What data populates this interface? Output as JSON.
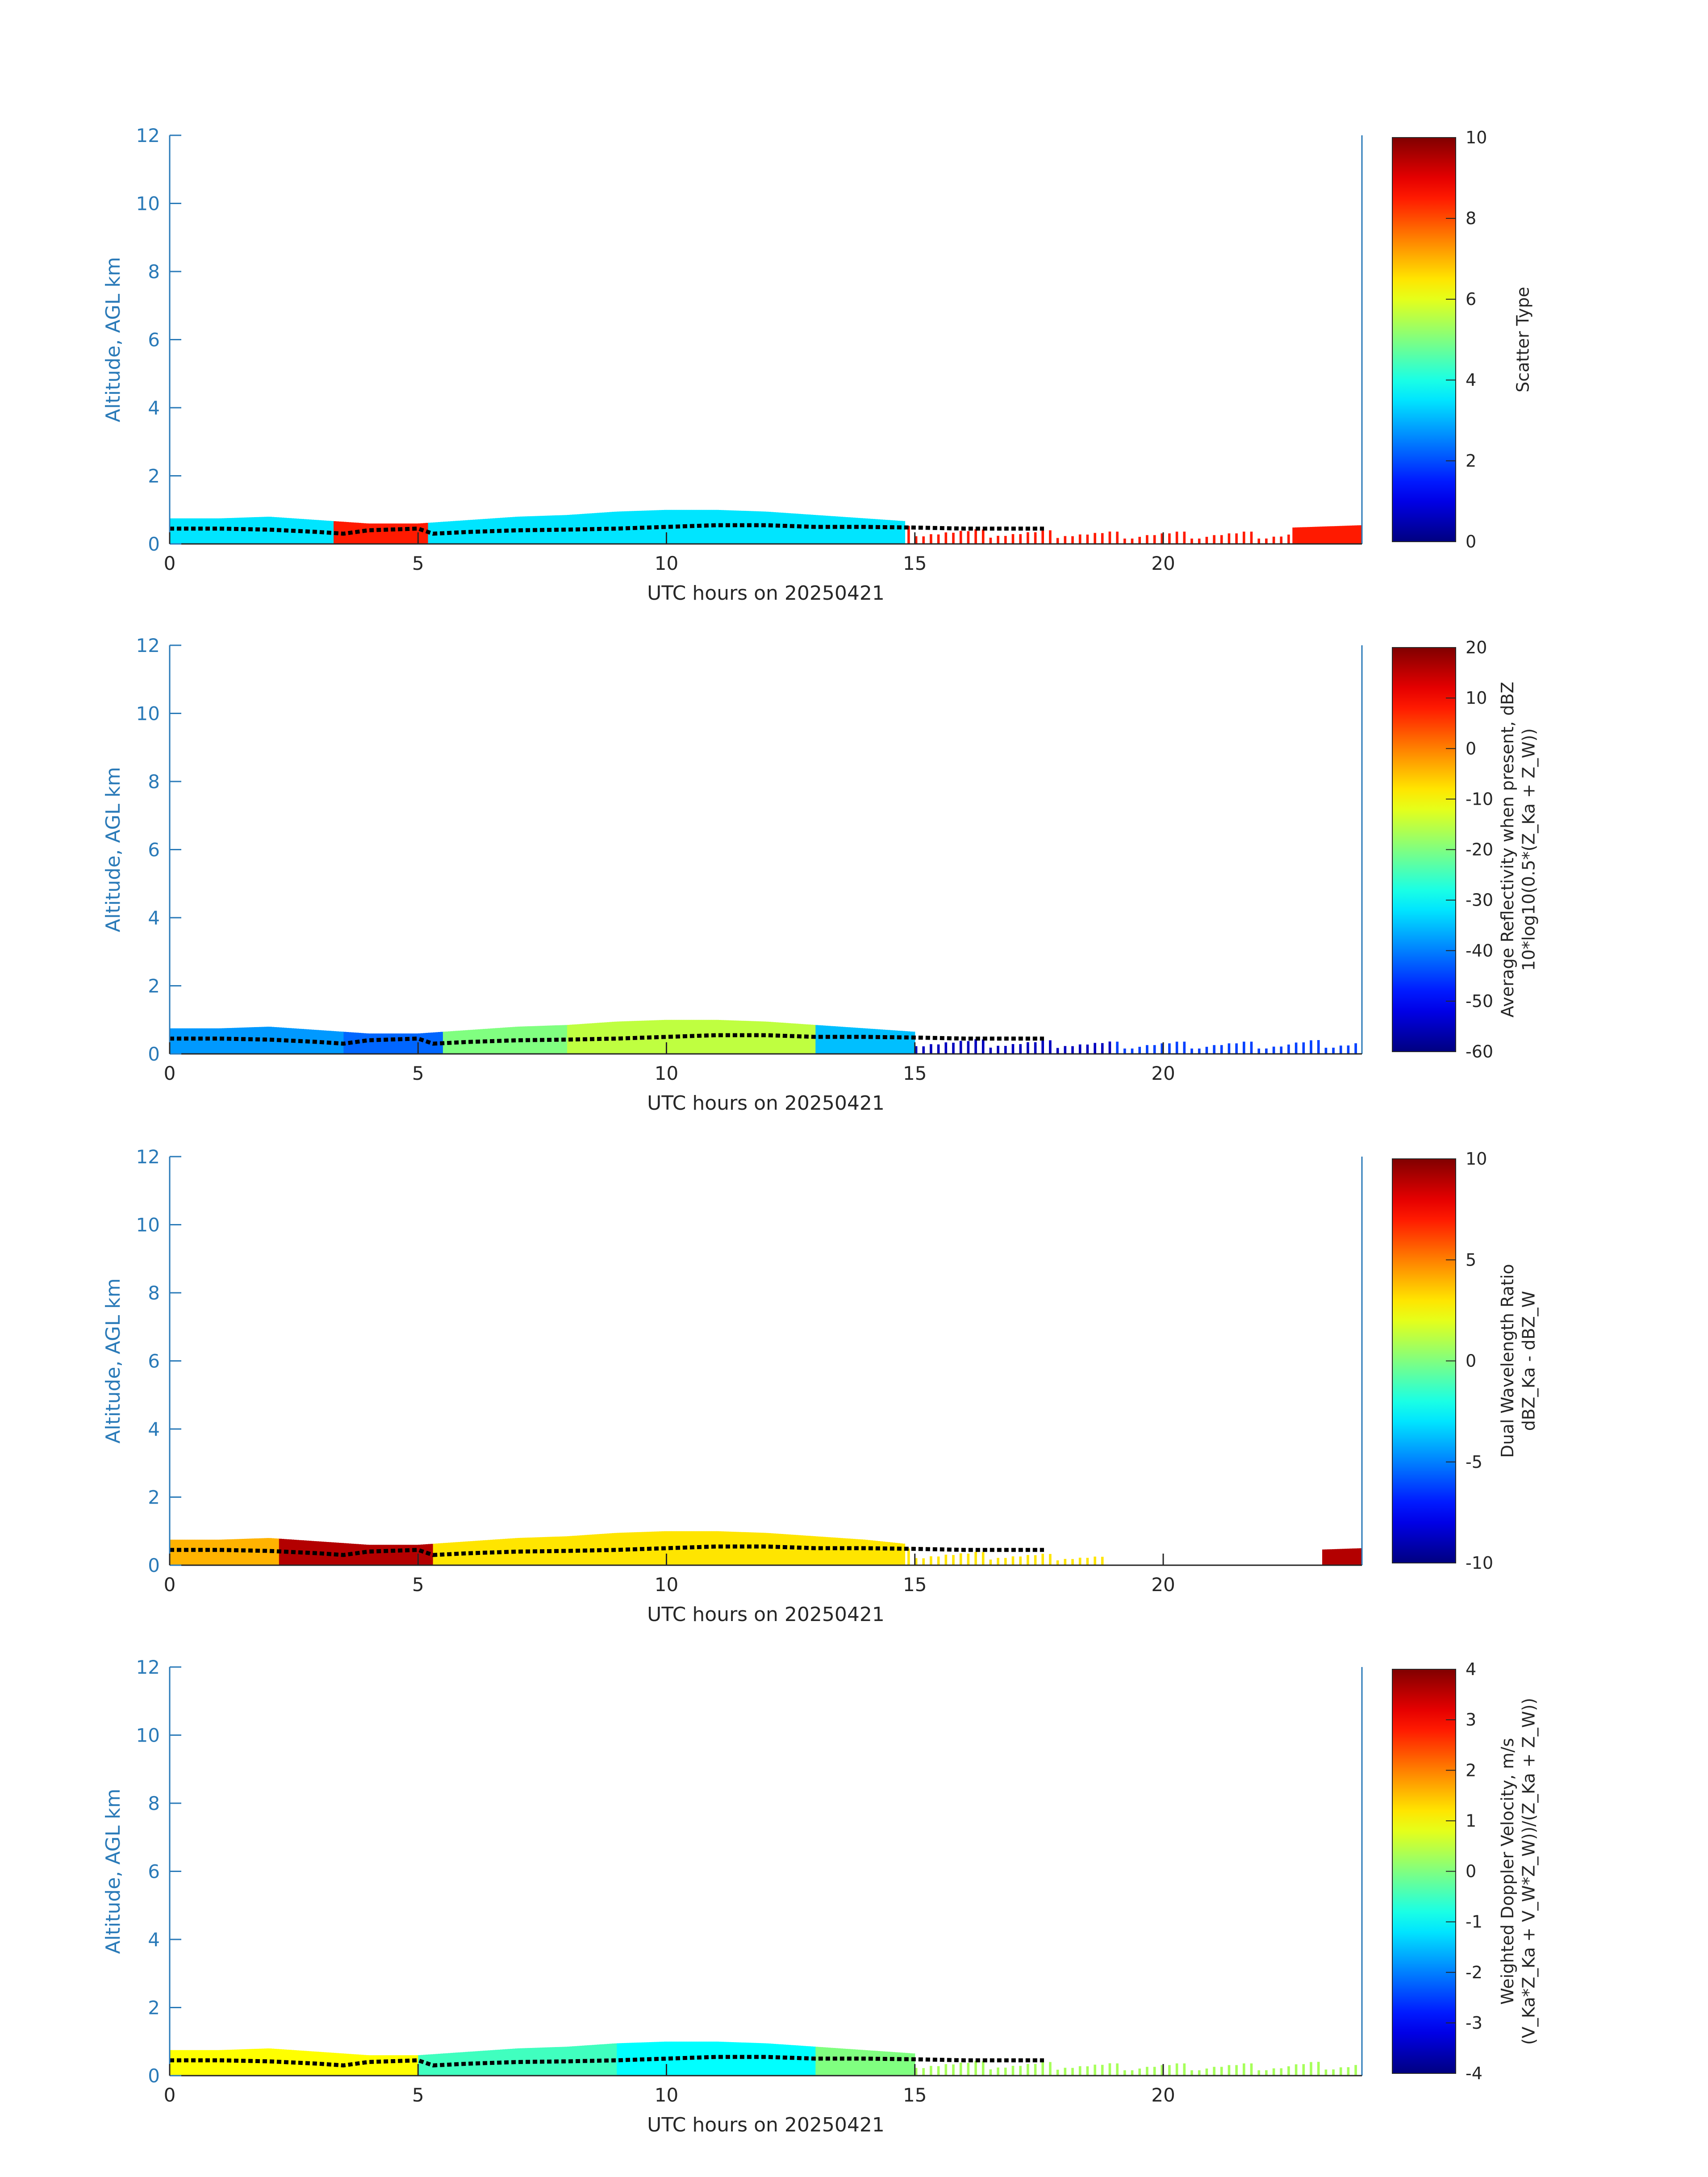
{
  "figure": {
    "background": "#ffffff",
    "axis_color": "#2a7ab8",
    "text_color": "#262626",
    "overlay_color": "#000000"
  },
  "chart_data": [
    {
      "type": "heatmap",
      "title": "",
      "xlabel": "UTC hours on 20250421",
      "ylabel": "Altitude, AGL km",
      "xlim": [
        0,
        24
      ],
      "ylim": [
        0,
        12
      ],
      "xticks": [
        "0",
        "5",
        "10",
        "15",
        "20"
      ],
      "yticks": [
        "0",
        "2",
        "4",
        "6",
        "8",
        "10",
        "12"
      ],
      "colorbar": {
        "label_lines": [
          "Scatter Type"
        ],
        "range": [
          0,
          10
        ],
        "ticks": [
          "0",
          "2",
          "4",
          "6",
          "8",
          "10"
        ],
        "colormap": "jet"
      },
      "layer_top_km": [
        [
          0,
          0.75
        ],
        [
          1,
          0.75
        ],
        [
          2,
          0.8
        ],
        [
          3,
          0.7
        ],
        [
          4,
          0.6
        ],
        [
          5,
          0.6
        ],
        [
          6,
          0.7
        ],
        [
          7,
          0.8
        ],
        [
          8,
          0.85
        ],
        [
          9,
          0.95
        ],
        [
          10,
          1.0
        ],
        [
          11,
          1.0
        ],
        [
          12,
          0.95
        ],
        [
          13,
          0.85
        ],
        [
          14,
          0.75
        ],
        [
          15,
          0.65
        ],
        [
          16,
          0.55
        ],
        [
          17,
          0.5
        ],
        [
          18,
          0.5
        ],
        [
          19,
          0.45
        ],
        [
          20,
          0.45
        ],
        [
          21,
          0.45
        ],
        [
          22,
          0.45
        ],
        [
          23,
          0.5
        ],
        [
          24,
          0.55
        ]
      ],
      "field_segments": [
        {
          "x": [
            0,
            3.3
          ],
          "value": 3.5
        },
        {
          "x": [
            3.3,
            5.2
          ],
          "value": 8.5
        },
        {
          "x": [
            5.2,
            14.8
          ],
          "value": 3.5
        },
        {
          "x": [
            14.8,
            17.8
          ],
          "value": 8.5,
          "sparse": true
        },
        {
          "x": [
            17.8,
            22.6
          ],
          "value": 8.5,
          "sparse": true
        },
        {
          "x": [
            22.6,
            24
          ],
          "value": 8.5
        }
      ],
      "overlay_line_km": [
        [
          0,
          0.45
        ],
        [
          1,
          0.45
        ],
        [
          2,
          0.42
        ],
        [
          3,
          0.35
        ],
        [
          3.5,
          0.3
        ],
        [
          4,
          0.4
        ],
        [
          5,
          0.45
        ],
        [
          5.3,
          0.3
        ],
        [
          6,
          0.35
        ],
        [
          7,
          0.4
        ],
        [
          8,
          0.42
        ],
        [
          9,
          0.45
        ],
        [
          10,
          0.5
        ],
        [
          11,
          0.55
        ],
        [
          12,
          0.55
        ],
        [
          13,
          0.5
        ],
        [
          14,
          0.5
        ],
        [
          15,
          0.48
        ],
        [
          16,
          0.45
        ],
        [
          17.6,
          0.45
        ]
      ]
    },
    {
      "type": "heatmap",
      "title": "",
      "xlabel": "UTC hours on 20250421",
      "ylabel": "Altitude, AGL km",
      "xlim": [
        0,
        24
      ],
      "ylim": [
        0,
        12
      ],
      "xticks": [
        "0",
        "5",
        "10",
        "15",
        "20"
      ],
      "yticks": [
        "0",
        "2",
        "4",
        "6",
        "8",
        "10",
        "12"
      ],
      "colorbar": {
        "label_lines": [
          "Average Reflectivity when present, dBZ",
          "10*log10(0.5*(Z_Ka + Z_W))"
        ],
        "range": [
          -60,
          20
        ],
        "ticks": [
          "-60",
          "-50",
          "-40",
          "-30",
          "-20",
          "-10",
          "0",
          "10",
          "20"
        ],
        "colormap": "jet"
      },
      "layer_top_km": [
        [
          0,
          0.75
        ],
        [
          1,
          0.75
        ],
        [
          2,
          0.8
        ],
        [
          3,
          0.7
        ],
        [
          4,
          0.6
        ],
        [
          5,
          0.6
        ],
        [
          6,
          0.7
        ],
        [
          7,
          0.8
        ],
        [
          8,
          0.85
        ],
        [
          9,
          0.95
        ],
        [
          10,
          1.0
        ],
        [
          11,
          1.0
        ],
        [
          12,
          0.95
        ],
        [
          13,
          0.85
        ],
        [
          14,
          0.75
        ],
        [
          15,
          0.65
        ],
        [
          16,
          0.55
        ],
        [
          17,
          0.5
        ],
        [
          18,
          0.5
        ],
        [
          19,
          0.45
        ],
        [
          20,
          0.45
        ],
        [
          21,
          0.45
        ],
        [
          22,
          0.45
        ],
        [
          23,
          0.5
        ],
        [
          24,
          0.55
        ]
      ],
      "field_segments": [
        {
          "x": [
            0,
            3.5
          ],
          "value": -38
        },
        {
          "x": [
            3.5,
            5.5
          ],
          "value": -42
        },
        {
          "x": [
            5.5,
            8
          ],
          "value": -20
        },
        {
          "x": [
            8,
            13
          ],
          "value": -15
        },
        {
          "x": [
            13,
            15
          ],
          "value": -35
        },
        {
          "x": [
            15,
            19
          ],
          "value": -55,
          "sparse": true
        },
        {
          "x": [
            19,
            24
          ],
          "value": -45,
          "sparse": true
        }
      ],
      "overlay_line_km": [
        [
          0,
          0.45
        ],
        [
          1,
          0.45
        ],
        [
          2,
          0.42
        ],
        [
          3,
          0.35
        ],
        [
          3.5,
          0.3
        ],
        [
          4,
          0.4
        ],
        [
          5,
          0.45
        ],
        [
          5.3,
          0.3
        ],
        [
          6,
          0.35
        ],
        [
          7,
          0.4
        ],
        [
          8,
          0.42
        ],
        [
          9,
          0.45
        ],
        [
          10,
          0.5
        ],
        [
          11,
          0.55
        ],
        [
          12,
          0.55
        ],
        [
          13,
          0.5
        ],
        [
          14,
          0.5
        ],
        [
          15,
          0.48
        ],
        [
          16,
          0.45
        ],
        [
          17.6,
          0.45
        ]
      ]
    },
    {
      "type": "heatmap",
      "title": "",
      "xlabel": "UTC hours on 20250421",
      "ylabel": "Altitude, AGL km",
      "xlim": [
        0,
        24
      ],
      "ylim": [
        0,
        12
      ],
      "xticks": [
        "0",
        "5",
        "10",
        "15",
        "20"
      ],
      "yticks": [
        "0",
        "2",
        "4",
        "6",
        "8",
        "10",
        "12"
      ],
      "colorbar": {
        "label_lines": [
          "Dual Wavelength Ratio",
          "dBZ_Ka - dBZ_W"
        ],
        "range": [
          -10,
          10
        ],
        "ticks": [
          "-10",
          "-5",
          "0",
          "5",
          "10"
        ],
        "colormap": "jet"
      },
      "layer_top_km": [
        [
          0,
          0.75
        ],
        [
          1,
          0.75
        ],
        [
          2,
          0.8
        ],
        [
          3,
          0.7
        ],
        [
          4,
          0.6
        ],
        [
          5,
          0.6
        ],
        [
          6,
          0.7
        ],
        [
          7,
          0.8
        ],
        [
          8,
          0.85
        ],
        [
          9,
          0.95
        ],
        [
          10,
          1.0
        ],
        [
          11,
          1.0
        ],
        [
          12,
          0.95
        ],
        [
          13,
          0.85
        ],
        [
          14,
          0.75
        ],
        [
          15,
          0.6
        ],
        [
          16,
          0.5
        ],
        [
          17,
          0.45
        ],
        [
          18,
          0.4
        ],
        [
          19,
          0.35
        ],
        [
          20,
          0.3
        ],
        [
          21,
          0.3
        ],
        [
          22,
          0.3
        ],
        [
          23,
          0.45
        ],
        [
          24,
          0.5
        ]
      ],
      "field_segments": [
        {
          "x": [
            0,
            2.2
          ],
          "value": 4
        },
        {
          "x": [
            2.2,
            5.3
          ],
          "value": 9
        },
        {
          "x": [
            5.3,
            14.8
          ],
          "value": 3
        },
        {
          "x": [
            14.8,
            18.8
          ],
          "value": 3,
          "sparse": true
        },
        {
          "x": [
            23.2,
            24
          ],
          "value": 9
        }
      ],
      "overlay_line_km": [
        [
          0,
          0.45
        ],
        [
          1,
          0.45
        ],
        [
          2,
          0.42
        ],
        [
          3,
          0.35
        ],
        [
          3.5,
          0.3
        ],
        [
          4,
          0.4
        ],
        [
          5,
          0.45
        ],
        [
          5.3,
          0.3
        ],
        [
          6,
          0.35
        ],
        [
          7,
          0.4
        ],
        [
          8,
          0.42
        ],
        [
          9,
          0.45
        ],
        [
          10,
          0.5
        ],
        [
          11,
          0.55
        ],
        [
          12,
          0.55
        ],
        [
          13,
          0.5
        ],
        [
          14,
          0.5
        ],
        [
          15,
          0.48
        ],
        [
          16,
          0.45
        ],
        [
          17.6,
          0.45
        ]
      ]
    },
    {
      "type": "heatmap",
      "title": "",
      "xlabel": "UTC hours on 20250421",
      "ylabel": "Altitude, AGL km",
      "xlim": [
        0,
        24
      ],
      "ylim": [
        0,
        12
      ],
      "xticks": [
        "0",
        "5",
        "10",
        "15",
        "20"
      ],
      "yticks": [
        "0",
        "2",
        "4",
        "6",
        "8",
        "10",
        "12"
      ],
      "colorbar": {
        "label_lines": [
          "Weighted Doppler Velocity, m/s",
          "(V_Ka*Z_Ka + V_W*Z_W))/(Z_Ka + Z_W))"
        ],
        "range": [
          -4,
          4
        ],
        "ticks": [
          "-4",
          "-3",
          "-2",
          "-1",
          "0",
          "1",
          "2",
          "3",
          "4"
        ],
        "colormap": "jet"
      },
      "layer_top_km": [
        [
          0,
          0.75
        ],
        [
          1,
          0.75
        ],
        [
          2,
          0.8
        ],
        [
          3,
          0.7
        ],
        [
          4,
          0.6
        ],
        [
          5,
          0.6
        ],
        [
          6,
          0.7
        ],
        [
          7,
          0.8
        ],
        [
          8,
          0.85
        ],
        [
          9,
          0.95
        ],
        [
          10,
          1.0
        ],
        [
          11,
          1.0
        ],
        [
          12,
          0.95
        ],
        [
          13,
          0.85
        ],
        [
          14,
          0.75
        ],
        [
          15,
          0.65
        ],
        [
          16,
          0.55
        ],
        [
          17,
          0.5
        ],
        [
          18,
          0.5
        ],
        [
          19,
          0.45
        ],
        [
          20,
          0.45
        ],
        [
          21,
          0.45
        ],
        [
          22,
          0.45
        ],
        [
          23,
          0.5
        ],
        [
          24,
          0.55
        ]
      ],
      "field_segments": [
        {
          "x": [
            0,
            5
          ],
          "value": 1
        },
        {
          "x": [
            5,
            9
          ],
          "value": -0.5
        },
        {
          "x": [
            9,
            13
          ],
          "value": -1
        },
        {
          "x": [
            13,
            15
          ],
          "value": 0
        },
        {
          "x": [
            15,
            24
          ],
          "value": 0.3,
          "sparse": true
        }
      ],
      "overlay_line_km": [
        [
          0,
          0.45
        ],
        [
          1,
          0.45
        ],
        [
          2,
          0.42
        ],
        [
          3,
          0.35
        ],
        [
          3.5,
          0.3
        ],
        [
          4,
          0.4
        ],
        [
          5,
          0.45
        ],
        [
          5.3,
          0.3
        ],
        [
          6,
          0.35
        ],
        [
          7,
          0.4
        ],
        [
          8,
          0.42
        ],
        [
          9,
          0.45
        ],
        [
          10,
          0.5
        ],
        [
          11,
          0.55
        ],
        [
          12,
          0.55
        ],
        [
          13,
          0.5
        ],
        [
          14,
          0.5
        ],
        [
          15,
          0.48
        ],
        [
          16,
          0.45
        ],
        [
          17.6,
          0.45
        ]
      ]
    }
  ]
}
